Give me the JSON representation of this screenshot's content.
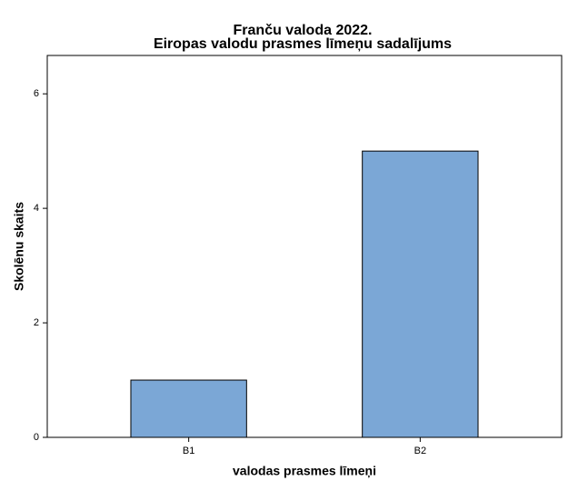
{
  "chart_data": {
    "type": "bar",
    "title": "Franču valoda 2022.",
    "subtitle": "Eiropas valodu prasmes līmeņu sadalījums",
    "x_label": "valodas prasmes līmeņi",
    "y_label": "Skolēnu skaits",
    "categories": [
      "B1",
      "B2"
    ],
    "values": [
      1,
      5
    ],
    "color": "#7ba7d6",
    "ylim": [
      0,
      6.67
    ],
    "yticks": [
      0,
      2,
      4,
      6
    ],
    "grid": false
  }
}
